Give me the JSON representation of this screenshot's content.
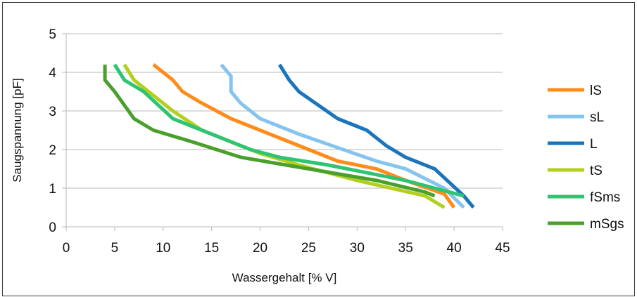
{
  "chart_data": {
    "type": "line",
    "title": "",
    "xlabel": "Wassergehalt [% V]",
    "ylabel": "Saugspannung [pF]",
    "xlim": [
      0,
      45
    ],
    "ylim": [
      0,
      5
    ],
    "xticks": [
      0,
      5,
      10,
      15,
      20,
      25,
      30,
      35,
      40,
      45
    ],
    "yticks": [
      0,
      1,
      2,
      3,
      4,
      5
    ],
    "grid": "horizontal",
    "legend_position": "right",
    "series": [
      {
        "name": "lS",
        "color": "#ff8c1a",
        "points": [
          [
            9.0,
            4.2
          ],
          [
            11.0,
            3.8
          ],
          [
            12.0,
            3.5
          ],
          [
            14.0,
            3.2
          ],
          [
            17.0,
            2.8
          ],
          [
            20.0,
            2.5
          ],
          [
            24.0,
            2.1
          ],
          [
            28.0,
            1.7
          ],
          [
            32.0,
            1.5
          ],
          [
            35.0,
            1.2
          ],
          [
            39.0,
            0.85
          ],
          [
            40.0,
            0.5
          ]
        ]
      },
      {
        "name": "sL",
        "color": "#85c4ee",
        "points": [
          [
            16.0,
            4.2
          ],
          [
            17.0,
            3.9
          ],
          [
            17.0,
            3.5
          ],
          [
            18.0,
            3.2
          ],
          [
            20.0,
            2.8
          ],
          [
            24.0,
            2.4
          ],
          [
            28.0,
            2.05
          ],
          [
            32.0,
            1.7
          ],
          [
            35.0,
            1.5
          ],
          [
            39.0,
            1.0
          ],
          [
            41.0,
            0.5
          ]
        ]
      },
      {
        "name": "L",
        "color": "#1b75bc",
        "points": [
          [
            22.0,
            4.2
          ],
          [
            23.0,
            3.8
          ],
          [
            24.0,
            3.5
          ],
          [
            28.0,
            2.8
          ],
          [
            30.0,
            2.6
          ],
          [
            31.0,
            2.5
          ],
          [
            33.0,
            2.1
          ],
          [
            35.0,
            1.8
          ],
          [
            38.0,
            1.5
          ],
          [
            41.0,
            0.8
          ],
          [
            42.0,
            0.5
          ]
        ]
      },
      {
        "name": "tS",
        "color": "#b3cf1f",
        "points": [
          [
            6.0,
            4.2
          ],
          [
            7.0,
            3.8
          ],
          [
            11.0,
            3.0
          ],
          [
            14.0,
            2.5
          ],
          [
            17.0,
            2.2
          ],
          [
            20.0,
            1.9
          ],
          [
            24.0,
            1.6
          ],
          [
            30.0,
            1.2
          ],
          [
            37.0,
            0.8
          ],
          [
            39.0,
            0.5
          ]
        ]
      },
      {
        "name": "fSms",
        "color": "#2ec472",
        "points": [
          [
            5.0,
            4.2
          ],
          [
            6.0,
            3.8
          ],
          [
            8.0,
            3.5
          ],
          [
            11.0,
            2.8
          ],
          [
            13.0,
            2.6
          ],
          [
            15.0,
            2.4
          ],
          [
            19.0,
            2.0
          ],
          [
            22.0,
            1.8
          ],
          [
            27.0,
            1.6
          ],
          [
            35.0,
            1.2
          ],
          [
            38.0,
            1.0
          ],
          [
            41.0,
            0.8
          ]
        ]
      },
      {
        "name": "mSgs",
        "color": "#4aa02c",
        "points": [
          [
            4.0,
            4.2
          ],
          [
            4.0,
            3.8
          ],
          [
            5.0,
            3.5
          ],
          [
            7.0,
            2.8
          ],
          [
            9.0,
            2.5
          ],
          [
            13.0,
            2.2
          ],
          [
            18.0,
            1.8
          ],
          [
            25.0,
            1.5
          ],
          [
            32.0,
            1.2
          ],
          [
            37.0,
            0.9
          ],
          [
            38.0,
            0.8
          ]
        ]
      }
    ]
  }
}
